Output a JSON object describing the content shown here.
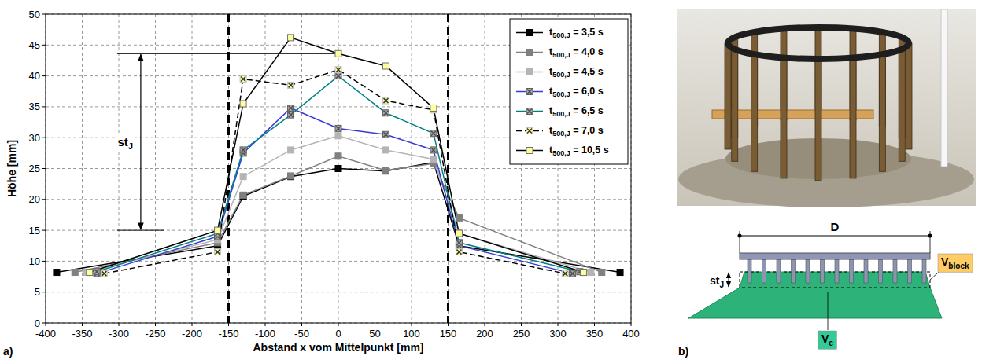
{
  "chart_data": {
    "type": "line",
    "x_label": "Abstand x vom Mittelpunkt [mm]",
    "y_label": "Höhe [mm]",
    "xlim": [
      -400,
      400
    ],
    "xticks": [
      -400,
      -350,
      -300,
      -250,
      -200,
      -150,
      -100,
      -50,
      0,
      50,
      100,
      150,
      200,
      250,
      300,
      350,
      400
    ],
    "ylim": [
      0,
      50
    ],
    "yticks": [
      0,
      5,
      10,
      15,
      20,
      25,
      30,
      35,
      40,
      45,
      50
    ],
    "grid": true,
    "legend": "upper right",
    "vlines": [
      -150,
      150
    ],
    "annotation": {
      "text": "st",
      "subscript": "J",
      "x": -270,
      "y_from": 15,
      "y_to": 43.6,
      "x_to": 0
    },
    "series": [
      {
        "name": "t500,J = 3,5 s",
        "color": "#000000",
        "marker": "square",
        "line_style": "solid",
        "x": [
          -385,
          -165,
          -130,
          -65,
          0,
          65,
          130,
          165,
          385
        ],
        "values": [
          8.2,
          12.5,
          20.5,
          23.7,
          25.0,
          24.6,
          26.0,
          12.5,
          8.2
        ]
      },
      {
        "name": "t500,J = 4,0 s",
        "color": "#808080",
        "marker": "square",
        "line_style": "solid",
        "x": [
          -360,
          -165,
          -130,
          -65,
          0,
          65,
          130,
          165,
          360
        ],
        "values": [
          8.2,
          13.0,
          20.7,
          23.8,
          27.0,
          24.7,
          25.8,
          17.0,
          8.2
        ]
      },
      {
        "name": "t500,J = 4,5 s",
        "color": "#b4b4b4",
        "marker": "square",
        "line_style": "solid",
        "x": [
          -345,
          -165,
          -130,
          -65,
          0,
          65,
          130,
          165,
          345
        ],
        "values": [
          8.2,
          13.5,
          23.7,
          28.0,
          30.3,
          28.0,
          26.5,
          14.5,
          8.2
        ]
      },
      {
        "name": "t500,J = 6,0 s",
        "color": "#3a3ad6",
        "marker": "square-x",
        "line_style": "solid",
        "x": [
          -330,
          -165,
          -130,
          -65,
          0,
          65,
          130,
          165,
          320
        ],
        "values": [
          8.0,
          14.0,
          27.5,
          34.8,
          31.5,
          30.5,
          28.0,
          12.5,
          8.0
        ]
      },
      {
        "name": "t500,J = 6,5 s",
        "color": "#008080",
        "marker": "square-x",
        "line_style": "solid",
        "x": [
          -330,
          -165,
          -130,
          -65,
          0,
          65,
          130,
          165,
          330
        ],
        "values": [
          8.3,
          14.5,
          28.0,
          33.7,
          40.0,
          34.0,
          30.7,
          13.0,
          8.3
        ]
      },
      {
        "name": "t500,J = 7,0 s",
        "color": "#000000",
        "marker": "yellow-square-x",
        "line_style": "dashed",
        "x": [
          -320,
          -165,
          -130,
          -65,
          0,
          65,
          130,
          165,
          310
        ],
        "values": [
          8.0,
          11.5,
          39.5,
          38.5,
          41.0,
          36.0,
          34.5,
          11.5,
          8.0
        ]
      },
      {
        "name": "t500,J = 10,5 s",
        "color": "#000000",
        "marker": "yellow-square",
        "line_style": "solid",
        "x": [
          -340,
          -165,
          -130,
          -65,
          0,
          65,
          130,
          165,
          335
        ],
        "values": [
          8.2,
          15.0,
          35.5,
          46.2,
          43.6,
          41.6,
          34.8,
          14.5,
          8.2
        ]
      }
    ]
  },
  "panel_labels": [
    "a)",
    "b)"
  ],
  "schematic": {
    "diameter_label": "D",
    "height_label": {
      "text": "st",
      "subscript": "J"
    },
    "block_volume_label": {
      "text": "V",
      "subscript": "block"
    },
    "concrete_volume_label": {
      "text": "V",
      "subscript": "c"
    }
  }
}
